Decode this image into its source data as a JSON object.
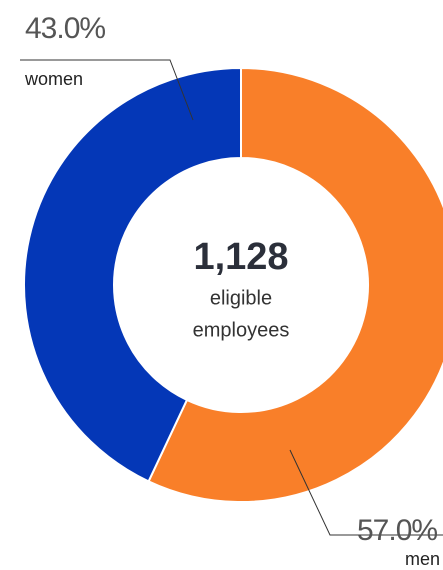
{
  "chart_data": {
    "type": "donut",
    "categories": [
      "men",
      "women"
    ],
    "values": [
      57,
      43
    ],
    "value_labels": [
      "57.0%",
      "43.0%"
    ],
    "colors": [
      "#f97f29",
      "#0437b7"
    ],
    "total": {
      "value": 1128,
      "label": "1,128"
    },
    "total_caption": [
      "eligible",
      "employees"
    ]
  }
}
